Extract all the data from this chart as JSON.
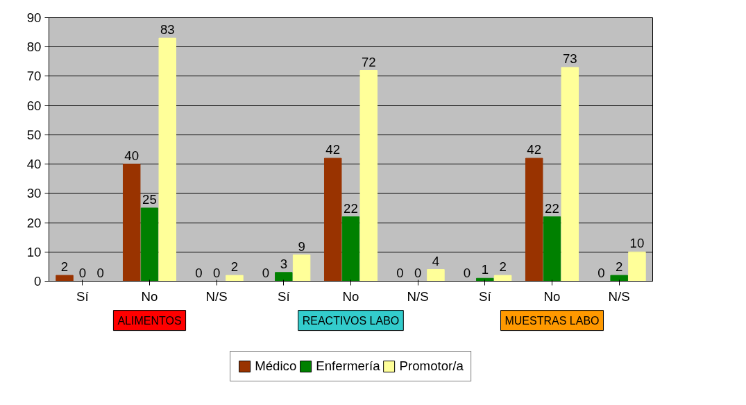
{
  "chart_data": {
    "type": "bar",
    "categories": [
      "Sí",
      "No",
      "N/S",
      "Sí",
      "No",
      "N/S",
      "Sí",
      "No",
      "N/S"
    ],
    "series": [
      {
        "name": "Médico",
        "color": "#993300",
        "values": [
          2,
          40,
          0,
          0,
          42,
          0,
          0,
          42,
          0
        ]
      },
      {
        "name": "Enfermería",
        "color": "#008000",
        "values": [
          0,
          25,
          0,
          3,
          22,
          0,
          1,
          22,
          2
        ]
      },
      {
        "name": "Promotor/a",
        "color": "#FFFF99",
        "values": [
          0,
          83,
          2,
          9,
          72,
          4,
          2,
          73,
          10
        ]
      }
    ],
    "annotations": [
      "ALIMENTOS",
      "REACTIVOS LABO",
      "MUESTRAS LABO"
    ],
    "ylim": [
      0,
      90
    ],
    "yticks": [
      0,
      10,
      20,
      30,
      40,
      50,
      60,
      70,
      80,
      90
    ],
    "data_labels": true,
    "grid": "y",
    "legend": "bottom"
  }
}
